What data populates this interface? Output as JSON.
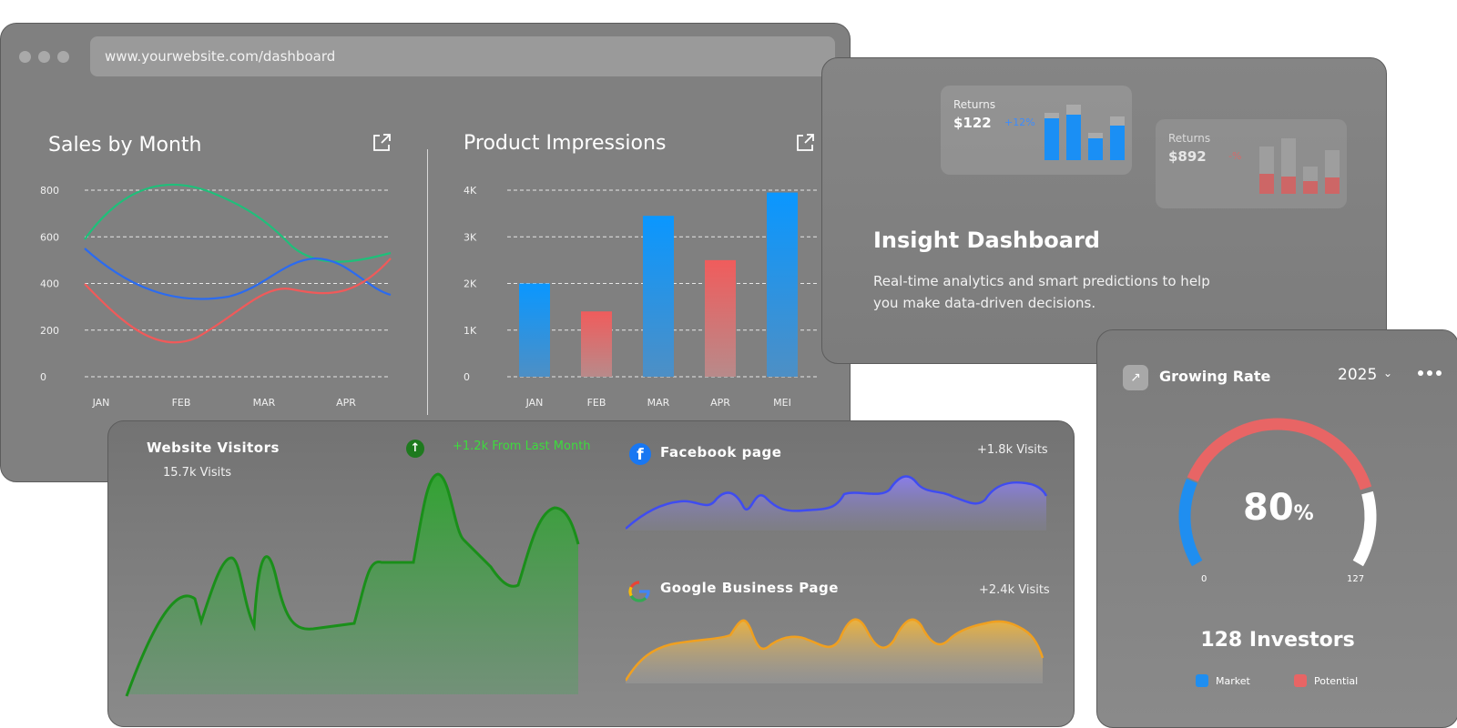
{
  "browser": {
    "url": "www.yourwebsite.com/dashboard",
    "sales_title": "Sales by Month",
    "impressions_title": "Product Impressions"
  },
  "sales_chart": {
    "type": "line",
    "title": "Sales by Month",
    "y_ticks": [
      "800",
      "600",
      "400",
      "200",
      "0"
    ],
    "categories": [
      "JAN",
      "FEB",
      "MAR",
      "APR"
    ],
    "ylim": [
      0,
      800
    ],
    "grid": true,
    "colors": [
      "#1fbf7a",
      "#2b6bf0",
      "#f05a5a"
    ]
  },
  "impressions_chart": {
    "type": "bar",
    "title": "Product Impressions",
    "y_ticks": [
      "4K",
      "3K",
      "2K",
      "1K",
      "0"
    ],
    "categories": [
      "JAN",
      "FEB",
      "MAR",
      "APR",
      "MEI"
    ],
    "values": [
      2000,
      1400,
      3450,
      2500,
      3950
    ],
    "ylim": [
      0,
      4000
    ],
    "grid": true,
    "colors": [
      "#0a8fff",
      "#f06060",
      "#0a8fff",
      "#f06060",
      "#0a8fff"
    ]
  },
  "insight": {
    "card1": {
      "label": "Returns",
      "value": "$122",
      "pct": "+12%"
    },
    "card2": {
      "label": "Returns",
      "value": "$892",
      "pct": "-%"
    },
    "title": "Insight Dashboard",
    "description": "Real-time analytics and smart predictions to help you make data-driven decisions."
  },
  "visitors": {
    "title": "Website Visitors",
    "visits": "15.7k Visits",
    "change": "+1.2k From Last Month",
    "facebook": {
      "title": "Facebook page",
      "visits": "+1.8k Visits"
    },
    "google": {
      "title": "Google Business Page",
      "visits": "+2.4k Visits"
    }
  },
  "growing": {
    "title": "Growing Rate",
    "year": "2025",
    "value": "80",
    "unit": "%",
    "gauge_fraction": 0.8,
    "min": "0",
    "max": "127",
    "investors": "128 Investors",
    "legend": [
      {
        "label": "Market",
        "color": "#1f8ef0"
      },
      {
        "label": "Potential",
        "color": "#e86565"
      }
    ]
  },
  "icons": {
    "external_link": "external-link-icon",
    "arrow_up": "arrow-up-icon",
    "facebook": "facebook-icon",
    "google": "google-icon",
    "trend": "trend-icon",
    "chevron": "chevron-down-icon",
    "more": "more-icon"
  }
}
